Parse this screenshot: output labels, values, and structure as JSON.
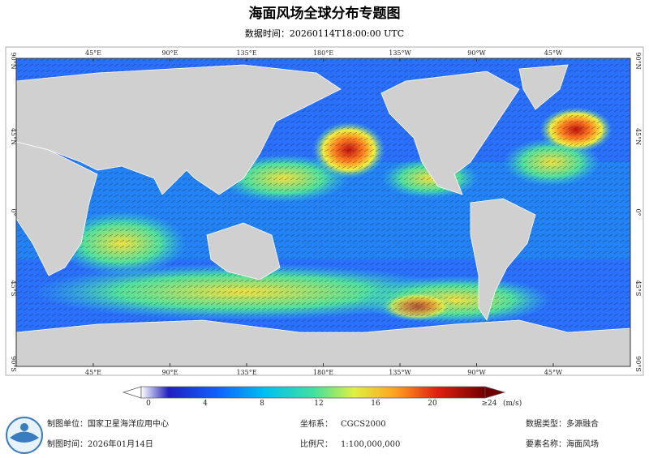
{
  "header": {
    "title": "海面风场全球分布专题图",
    "subtitle": "数据时间：20260114T18:00:00 UTC"
  },
  "map": {
    "lon_labels": [
      "45°E",
      "90°E",
      "135°E",
      "180°E",
      "135°W",
      "90°W",
      "45°W"
    ],
    "lat_labels": [
      "90°N",
      "45°N",
      "0°",
      "45°S",
      "90°S"
    ]
  },
  "colorbar": {
    "ticks": [
      "0",
      "4",
      "8",
      "12",
      "16",
      "20"
    ],
    "max_label": "≥24",
    "unit": "(m/s)"
  },
  "footer": {
    "items": [
      {
        "label": "制图单位：",
        "value": "国家卫星海洋应用中心"
      },
      {
        "label": "坐标系：",
        "value": "CGCS2000"
      },
      {
        "label": "数据类型：",
        "value": "多源融合"
      },
      {
        "label": "制图时间：",
        "value": "2026年01月14日"
      },
      {
        "label": "比例尺：",
        "value": "1:100,000,000"
      },
      {
        "label": "要素名称：",
        "value": "海面风场"
      }
    ]
  }
}
